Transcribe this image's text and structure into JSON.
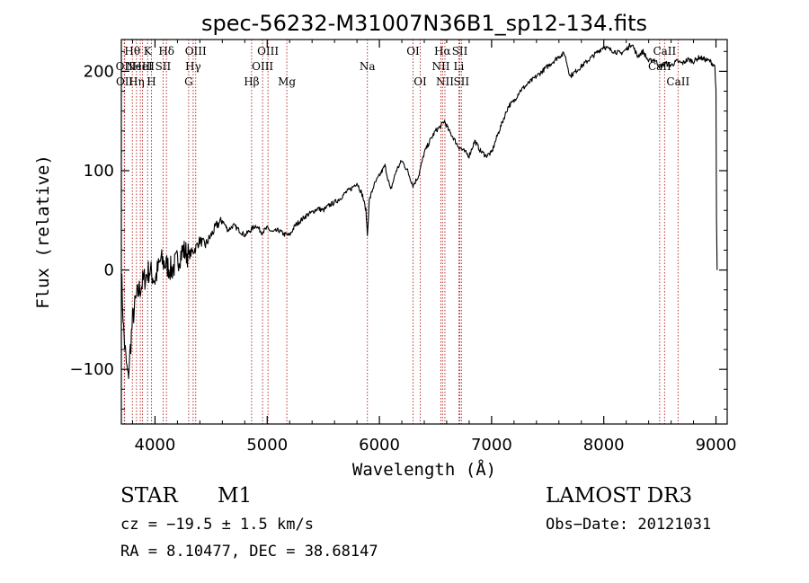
{
  "chart_data": {
    "type": "line",
    "title": "spec-56232-M31007N36B1_sp12-134.fits",
    "xlabel": "Wavelength (Å)",
    "ylabel": "Flux (relative)",
    "xlim": [
      3700,
      9100
    ],
    "ylim": [
      -155,
      232
    ],
    "xticks": [
      4000,
      5000,
      6000,
      7000,
      8000,
      9000
    ],
    "yticks": [
      -100,
      0,
      100,
      200
    ],
    "xtick_labels": [
      "4000",
      "5000",
      "6000",
      "7000",
      "8000",
      "9000"
    ],
    "ytick_labels": [
      "−100",
      "0",
      "100",
      "200"
    ],
    "spectrum": {
      "name": "flux",
      "x": [
        3700,
        3720,
        3740,
        3760,
        3780,
        3800,
        3830,
        3860,
        3900,
        3950,
        4000,
        4050,
        4100,
        4150,
        4200,
        4250,
        4300,
        4350,
        4400,
        4450,
        4500,
        4550,
        4600,
        4650,
        4700,
        4750,
        4800,
        4850,
        4900,
        4950,
        5000,
        5050,
        5100,
        5150,
        5200,
        5250,
        5300,
        5350,
        5400,
        5450,
        5500,
        5550,
        5600,
        5650,
        5700,
        5750,
        5800,
        5850,
        5880,
        5893,
        5910,
        5950,
        6000,
        6050,
        6100,
        6150,
        6200,
        6250,
        6300,
        6350,
        6400,
        6450,
        6500,
        6550,
        6580,
        6620,
        6650,
        6700,
        6750,
        6800,
        6850,
        6900,
        6950,
        7000,
        7050,
        7100,
        7150,
        7200,
        7250,
        7300,
        7350,
        7400,
        7450,
        7500,
        7550,
        7600,
        7650,
        7700,
        7750,
        7800,
        7850,
        7900,
        7950,
        8000,
        8050,
        8100,
        8150,
        8200,
        8250,
        8300,
        8350,
        8400,
        8450,
        8500,
        8550,
        8600,
        8650,
        8700,
        8750,
        8800,
        8850,
        8900,
        8950,
        8990,
        9000,
        9005,
        9010
      ],
      "y": [
        0,
        -60,
        -90,
        -110,
        -80,
        -50,
        -30,
        -20,
        -10,
        0,
        -10,
        10,
        5,
        0,
        10,
        20,
        15,
        20,
        30,
        25,
        35,
        45,
        50,
        40,
        45,
        40,
        35,
        40,
        45,
        38,
        42,
        38,
        40,
        36,
        35,
        45,
        50,
        55,
        58,
        62,
        60,
        65,
        68,
        72,
        78,
        82,
        88,
        75,
        60,
        35,
        70,
        85,
        95,
        105,
        80,
        100,
        110,
        100,
        85,
        95,
        118,
        130,
        140,
        145,
        150,
        140,
        135,
        125,
        120,
        115,
        130,
        120,
        115,
        118,
        135,
        150,
        165,
        170,
        180,
        185,
        190,
        195,
        200,
        205,
        210,
        215,
        218,
        195,
        200,
        205,
        210,
        215,
        220,
        225,
        222,
        220,
        218,
        222,
        228,
        215,
        220,
        210,
        212,
        205,
        208,
        206,
        210,
        208,
        212,
        210,
        214,
        212,
        210,
        205,
        180,
        50,
        0
      ]
    },
    "lines": [
      {
        "x": 3798,
        "label": "Hθ",
        "row": 0
      },
      {
        "x": 3726,
        "label": "OII",
        "row": 1
      },
      {
        "x": 3729,
        "label": "OII",
        "row": 2
      },
      {
        "x": 3835,
        "label": "Hη",
        "row": 2
      },
      {
        "x": 3869,
        "label": "NeIII",
        "row": 1
      },
      {
        "x": 3889,
        "label": "HeI",
        "row": 1
      },
      {
        "x": 3934,
        "label": "K",
        "row": 0
      },
      {
        "x": 3968,
        "label": "H",
        "row": 2
      },
      {
        "x": 4072,
        "label": "SII",
        "row": 1
      },
      {
        "x": 4102,
        "label": "Hδ",
        "row": 0
      },
      {
        "x": 4300,
        "label": "G",
        "row": 2
      },
      {
        "x": 4340,
        "label": "Hγ",
        "row": 1
      },
      {
        "x": 4363,
        "label": "OIII",
        "row": 0
      },
      {
        "x": 4861,
        "label": "Hβ",
        "row": 2
      },
      {
        "x": 4959,
        "label": "OIII",
        "row": 1
      },
      {
        "x": 5007,
        "label": "OIII",
        "row": 0
      },
      {
        "x": 5175,
        "label": "Mg",
        "row": 2
      },
      {
        "x": 5893,
        "label": "Na",
        "row": 1
      },
      {
        "x": 6300,
        "label": "OI",
        "row": 0
      },
      {
        "x": 6364,
        "label": "OI",
        "row": 2
      },
      {
        "x": 6548,
        "label": "NII",
        "row": 1
      },
      {
        "x": 6563,
        "label": "Hα",
        "row": 0
      },
      {
        "x": 6584,
        "label": "NII",
        "row": 2
      },
      {
        "x": 6708,
        "label": "Li",
        "row": 1
      },
      {
        "x": 6717,
        "label": "SII",
        "row": 0
      },
      {
        "x": 6731,
        "label": "SII",
        "row": 2
      },
      {
        "x": 8498,
        "label": "CaII",
        "row": 1
      },
      {
        "x": 8542,
        "label": "CaII",
        "row": 0
      },
      {
        "x": 8662,
        "label": "CaII",
        "row": 2
      }
    ]
  },
  "info": {
    "object_class": "STAR",
    "subclass": "M1",
    "survey": "LAMOST DR3",
    "cz_text": "cz = −19.5 ± 1.5 km/s",
    "obs_date_text": "Obs−Date: 20121031",
    "radec_text": "RA =   8.10477, DEC =  38.68147"
  },
  "colors": {
    "spectrum": "#000000",
    "line_marker": "#b22222",
    "axes": "#000000"
  }
}
